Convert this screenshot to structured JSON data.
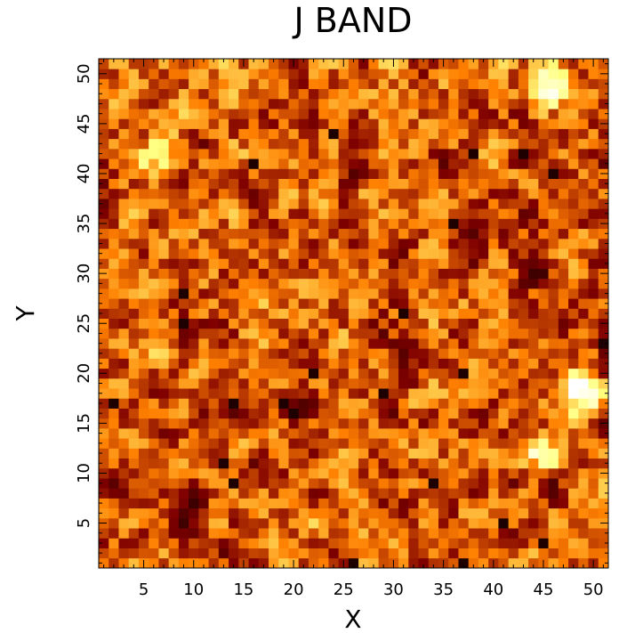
{
  "chart_data": {
    "type": "heatmap",
    "title": "J BAND",
    "xlabel": "X",
    "ylabel": "Y",
    "xlim": [
      0.5,
      51.5
    ],
    "ylim": [
      0.5,
      51.5
    ],
    "xticks": [
      5,
      10,
      15,
      20,
      25,
      30,
      35,
      40,
      45,
      50
    ],
    "yticks": [
      5,
      10,
      15,
      20,
      25,
      30,
      35,
      40,
      45,
      50
    ],
    "grid_size": [
      51,
      51
    ],
    "colormap": "afmhot (black to red-orange to yellow to white)",
    "grid": false,
    "legend": false,
    "bright_sources": [
      {
        "x": 45.5,
        "y": 49.5,
        "intensity": 1.0
      },
      {
        "x": 49.0,
        "y": 18.0,
        "intensity": 1.0
      },
      {
        "x": 44.5,
        "y": 12.0,
        "intensity": 0.68
      },
      {
        "x": 6.5,
        "y": 41.5,
        "intensity": 0.62
      },
      {
        "x": 2.0,
        "y": 29.0,
        "intensity": 0.55
      },
      {
        "x": 17.0,
        "y": 25.0,
        "intensity": 0.55
      }
    ],
    "dark_pixels": [
      {
        "x": 14,
        "y": 17
      },
      {
        "x": 19,
        "y": 17
      },
      {
        "x": 20,
        "y": 16
      },
      {
        "x": 9,
        "y": 28
      },
      {
        "x": 9,
        "y": 25
      },
      {
        "x": 16,
        "y": 41
      },
      {
        "x": 24,
        "y": 44
      },
      {
        "x": 36,
        "y": 35
      },
      {
        "x": 43,
        "y": 42
      },
      {
        "x": 14,
        "y": 9
      },
      {
        "x": 41,
        "y": 5
      },
      {
        "x": 37,
        "y": 20
      },
      {
        "x": 29,
        "y": 18
      },
      {
        "x": 22,
        "y": 20
      },
      {
        "x": 31,
        "y": 26
      },
      {
        "x": 26,
        "y": 1
      },
      {
        "x": 37,
        "y": 1
      },
      {
        "x": 13,
        "y": 11
      },
      {
        "x": 45,
        "y": 3
      },
      {
        "x": 51,
        "y": 23
      },
      {
        "x": 2,
        "y": 17
      },
      {
        "x": 46,
        "y": 40
      },
      {
        "x": 38,
        "y": 42
      },
      {
        "x": 34,
        "y": 9
      }
    ]
  }
}
